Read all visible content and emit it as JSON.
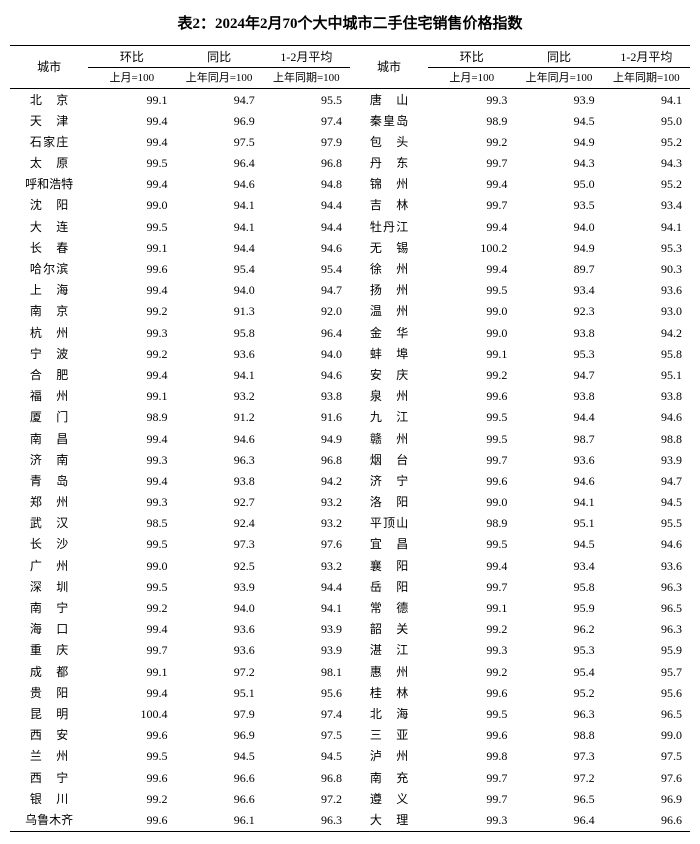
{
  "title": "表2：2024年2月70个大中城市二手住宅销售价格指数",
  "headers": {
    "city": "城市",
    "mom": "环比",
    "yoy": "同比",
    "avg": "1-2月平均",
    "mom_sub": "上月=100",
    "yoy_sub": "上年同月=100",
    "avg_sub": "上年同期=100"
  },
  "rows": [
    {
      "l": {
        "c": "北京",
        "r": 2,
        "v": [
          99.1,
          94.7,
          95.5
        ]
      },
      "r": {
        "c": "唐山",
        "r": 2,
        "v": [
          99.3,
          93.9,
          94.1
        ]
      }
    },
    {
      "l": {
        "c": "天津",
        "r": 2,
        "v": [
          99.4,
          96.9,
          97.4
        ]
      },
      "r": {
        "c": "秦皇岛",
        "r": 3,
        "v": [
          98.9,
          94.5,
          95.0
        ]
      }
    },
    {
      "l": {
        "c": "石家庄",
        "r": 3,
        "v": [
          99.4,
          97.5,
          97.9
        ]
      },
      "r": {
        "c": "包头",
        "r": 2,
        "v": [
          99.2,
          94.9,
          95.2
        ]
      }
    },
    {
      "l": {
        "c": "太原",
        "r": 2,
        "v": [
          99.5,
          96.4,
          96.8
        ]
      },
      "r": {
        "c": "丹东",
        "r": 2,
        "v": [
          99.7,
          94.3,
          94.3
        ]
      }
    },
    {
      "l": {
        "c": "呼和浩特",
        "r": 4,
        "v": [
          99.4,
          94.6,
          94.8
        ]
      },
      "r": {
        "c": "锦州",
        "r": 2,
        "v": [
          99.4,
          95.0,
          95.2
        ]
      }
    },
    {
      "l": {
        "c": "沈阳",
        "r": 2,
        "v": [
          99.0,
          94.1,
          94.4
        ]
      },
      "r": {
        "c": "吉林",
        "r": 2,
        "v": [
          99.7,
          93.5,
          93.4
        ]
      }
    },
    {
      "l": {
        "c": "大连",
        "r": 2,
        "v": [
          99.5,
          94.1,
          94.4
        ]
      },
      "r": {
        "c": "牡丹江",
        "r": 3,
        "v": [
          99.4,
          94.0,
          94.1
        ]
      }
    },
    {
      "l": {
        "c": "长春",
        "r": 2,
        "v": [
          99.1,
          94.4,
          94.6
        ]
      },
      "r": {
        "c": "无锡",
        "r": 2,
        "v": [
          100.2,
          94.9,
          95.3
        ]
      }
    },
    {
      "l": {
        "c": "哈尔滨",
        "r": 3,
        "v": [
          99.6,
          95.4,
          95.4
        ]
      },
      "r": {
        "c": "徐州",
        "r": 2,
        "v": [
          99.4,
          89.7,
          90.3
        ]
      }
    },
    {
      "l": {
        "c": "上海",
        "r": 2,
        "v": [
          99.4,
          94.0,
          94.7
        ]
      },
      "r": {
        "c": "扬州",
        "r": 2,
        "v": [
          99.5,
          93.4,
          93.6
        ]
      }
    },
    {
      "l": {
        "c": "南京",
        "r": 2,
        "v": [
          99.2,
          91.3,
          92.0
        ]
      },
      "r": {
        "c": "温州",
        "r": 2,
        "v": [
          99.0,
          92.3,
          93.0
        ]
      }
    },
    {
      "l": {
        "c": "杭州",
        "r": 2,
        "v": [
          99.3,
          95.8,
          96.4
        ]
      },
      "r": {
        "c": "金华",
        "r": 2,
        "v": [
          99.0,
          93.8,
          94.2
        ]
      }
    },
    {
      "l": {
        "c": "宁波",
        "r": 2,
        "v": [
          99.2,
          93.6,
          94.0
        ]
      },
      "r": {
        "c": "蚌埠",
        "r": 2,
        "v": [
          99.1,
          95.3,
          95.8
        ]
      }
    },
    {
      "l": {
        "c": "合肥",
        "r": 2,
        "v": [
          99.4,
          94.1,
          94.6
        ]
      },
      "r": {
        "c": "安庆",
        "r": 2,
        "v": [
          99.2,
          94.7,
          95.1
        ]
      }
    },
    {
      "l": {
        "c": "福州",
        "r": 2,
        "v": [
          99.1,
          93.2,
          93.8
        ]
      },
      "r": {
        "c": "泉州",
        "r": 2,
        "v": [
          99.6,
          93.8,
          93.8
        ]
      }
    },
    {
      "l": {
        "c": "厦门",
        "r": 2,
        "v": [
          98.9,
          91.2,
          91.6
        ]
      },
      "r": {
        "c": "九江",
        "r": 2,
        "v": [
          99.5,
          94.4,
          94.6
        ]
      }
    },
    {
      "l": {
        "c": "南昌",
        "r": 2,
        "v": [
          99.4,
          94.6,
          94.9
        ]
      },
      "r": {
        "c": "赣州",
        "r": 2,
        "v": [
          99.5,
          98.7,
          98.8
        ]
      }
    },
    {
      "l": {
        "c": "济南",
        "r": 2,
        "v": [
          99.3,
          96.3,
          96.8
        ]
      },
      "r": {
        "c": "烟台",
        "r": 2,
        "v": [
          99.7,
          93.6,
          93.9
        ]
      }
    },
    {
      "l": {
        "c": "青岛",
        "r": 2,
        "v": [
          99.4,
          93.8,
          94.2
        ]
      },
      "r": {
        "c": "济宁",
        "r": 2,
        "v": [
          99.6,
          94.6,
          94.7
        ]
      }
    },
    {
      "l": {
        "c": "郑州",
        "r": 2,
        "v": [
          99.3,
          92.7,
          93.2
        ]
      },
      "r": {
        "c": "洛阳",
        "r": 2,
        "v": [
          99.0,
          94.1,
          94.5
        ]
      }
    },
    {
      "l": {
        "c": "武汉",
        "r": 2,
        "v": [
          98.5,
          92.4,
          93.2
        ]
      },
      "r": {
        "c": "平顶山",
        "r": 3,
        "v": [
          98.9,
          95.1,
          95.5
        ]
      }
    },
    {
      "l": {
        "c": "长沙",
        "r": 2,
        "v": [
          99.5,
          97.3,
          97.6
        ]
      },
      "r": {
        "c": "宜昌",
        "r": 2,
        "v": [
          99.5,
          94.5,
          94.6
        ]
      }
    },
    {
      "l": {
        "c": "广州",
        "r": 2,
        "v": [
          99.0,
          92.5,
          93.2
        ]
      },
      "r": {
        "c": "襄阳",
        "r": 2,
        "v": [
          99.4,
          93.4,
          93.6
        ]
      }
    },
    {
      "l": {
        "c": "深圳",
        "r": 2,
        "v": [
          99.5,
          93.9,
          94.4
        ]
      },
      "r": {
        "c": "岳阳",
        "r": 2,
        "v": [
          99.7,
          95.8,
          96.3
        ]
      }
    },
    {
      "l": {
        "c": "南宁",
        "r": 2,
        "v": [
          99.2,
          94.0,
          94.1
        ]
      },
      "r": {
        "c": "常德",
        "r": 2,
        "v": [
          99.1,
          95.9,
          96.5
        ]
      }
    },
    {
      "l": {
        "c": "海口",
        "r": 2,
        "v": [
          99.4,
          93.6,
          93.9
        ]
      },
      "r": {
        "c": "韶关",
        "r": 2,
        "v": [
          99.2,
          96.2,
          96.3
        ]
      }
    },
    {
      "l": {
        "c": "重庆",
        "r": 2,
        "v": [
          99.7,
          93.6,
          93.9
        ]
      },
      "r": {
        "c": "湛江",
        "r": 2,
        "v": [
          99.3,
          95.3,
          95.9
        ]
      }
    },
    {
      "l": {
        "c": "成都",
        "r": 2,
        "v": [
          99.1,
          97.2,
          98.1
        ]
      },
      "r": {
        "c": "惠州",
        "r": 2,
        "v": [
          99.2,
          95.4,
          95.7
        ]
      }
    },
    {
      "l": {
        "c": "贵阳",
        "r": 2,
        "v": [
          99.4,
          95.1,
          95.6
        ]
      },
      "r": {
        "c": "桂林",
        "r": 2,
        "v": [
          99.6,
          95.2,
          95.6
        ]
      }
    },
    {
      "l": {
        "c": "昆明",
        "r": 2,
        "v": [
          100.4,
          97.9,
          97.4
        ]
      },
      "r": {
        "c": "北海",
        "r": 2,
        "v": [
          99.5,
          96.3,
          96.5
        ]
      }
    },
    {
      "l": {
        "c": "西安",
        "r": 2,
        "v": [
          99.6,
          96.9,
          97.5
        ]
      },
      "r": {
        "c": "三亚",
        "r": 2,
        "v": [
          99.6,
          98.8,
          99.0
        ]
      }
    },
    {
      "l": {
        "c": "兰州",
        "r": 2,
        "v": [
          99.5,
          94.5,
          94.5
        ]
      },
      "r": {
        "c": "泸州",
        "r": 2,
        "v": [
          99.8,
          97.3,
          97.5
        ]
      }
    },
    {
      "l": {
        "c": "西宁",
        "r": 2,
        "v": [
          99.6,
          96.6,
          96.8
        ]
      },
      "r": {
        "c": "南充",
        "r": 2,
        "v": [
          99.7,
          97.2,
          97.6
        ]
      }
    },
    {
      "l": {
        "c": "银川",
        "r": 2,
        "v": [
          99.2,
          96.6,
          97.2
        ]
      },
      "r": {
        "c": "遵义",
        "r": 2,
        "v": [
          99.7,
          96.5,
          96.9
        ]
      }
    },
    {
      "l": {
        "c": "乌鲁木齐",
        "r": 4,
        "v": [
          99.6,
          96.1,
          96.3
        ]
      },
      "r": {
        "c": "大理",
        "r": 2,
        "v": [
          99.3,
          96.4,
          96.6
        ]
      }
    }
  ],
  "style": {
    "background": "#ffffff",
    "text_color": "#000000",
    "border_color": "#000000",
    "title_fontsize": 15,
    "body_fontsize": 12
  }
}
